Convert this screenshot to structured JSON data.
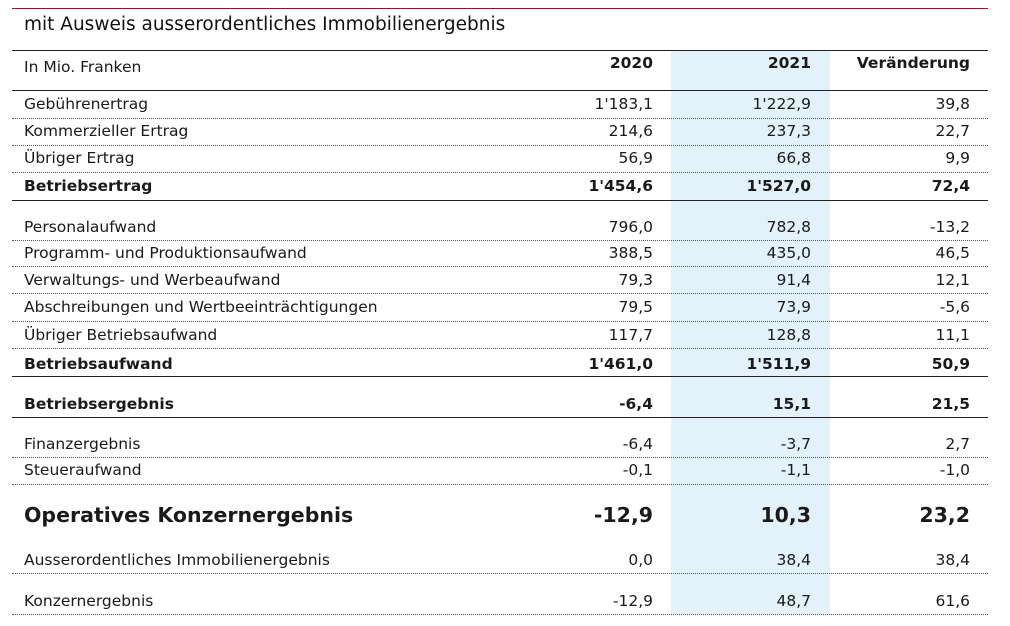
{
  "title": "mit Ausweis ausserordentliches Immobilienergebnis",
  "header": {
    "unit_label": "In Mio. Franken",
    "col_2020": "2020",
    "col_2021": "2021",
    "col_change": "Veränderung"
  },
  "rows": [
    {
      "label": "Gebührenertrag",
      "v2020": "1'183,1",
      "v2021": "1'222,9",
      "change": "39,8",
      "style": "normal"
    },
    {
      "label": "Kommerzieller Ertrag",
      "v2020": "214,6",
      "v2021": "237,3",
      "change": "22,7",
      "style": "normal"
    },
    {
      "label": "Übriger Ertrag",
      "v2020": "56,9",
      "v2021": "66,8",
      "change": "9,9",
      "style": "normal"
    },
    {
      "label": "Betriebsertrag",
      "v2020": "1'454,6",
      "v2021": "1'527,0",
      "change": "72,4",
      "style": "bold"
    },
    {
      "label": "Personalaufwand",
      "v2020": "796,0",
      "v2021": "782,8",
      "change": "-13,2",
      "style": "normal"
    },
    {
      "label": "Programm- und Produktionsaufwand",
      "v2020": "388,5",
      "v2021": "435,0",
      "change": "46,5",
      "style": "normal"
    },
    {
      "label": "Verwaltungs- und Werbeaufwand",
      "v2020": "79,3",
      "v2021": "91,4",
      "change": "12,1",
      "style": "normal"
    },
    {
      "label": "Abschreibungen und Wertbeeinträchtigungen",
      "v2020": "79,5",
      "v2021": "73,9",
      "change": "-5,6",
      "style": "normal"
    },
    {
      "label": "Übriger Betriebsaufwand",
      "v2020": "117,7",
      "v2021": "128,8",
      "change": "11,1",
      "style": "normal"
    },
    {
      "label": "Betriebsaufwand",
      "v2020": "1'461,0",
      "v2021": "1'511,9",
      "change": "50,9",
      "style": "bold"
    },
    {
      "label": "Betriebsergebnis",
      "v2020": "-6,4",
      "v2021": "15,1",
      "change": "21,5",
      "style": "bold"
    },
    {
      "label": "Finanzergebnis",
      "v2020": "-6,4",
      "v2021": "-3,7",
      "change": "2,7",
      "style": "normal"
    },
    {
      "label": "Steueraufwand",
      "v2020": "-0,1",
      "v2021": "-1,1",
      "change": "-1,0",
      "style": "normal"
    },
    {
      "label": "Operatives Konzernergebnis",
      "v2020": "-12,9",
      "v2021": "10,3",
      "change": "23,2",
      "style": "big"
    },
    {
      "label": "Ausserordentliches Immobilienergebnis",
      "v2020": "0,0",
      "v2021": "38,4",
      "change": "38,4",
      "style": "normal"
    },
    {
      "label": "Konzernergebnis",
      "v2020": "-12,9",
      "v2021": "48,7",
      "change": "61,6",
      "style": "normal"
    }
  ]
}
